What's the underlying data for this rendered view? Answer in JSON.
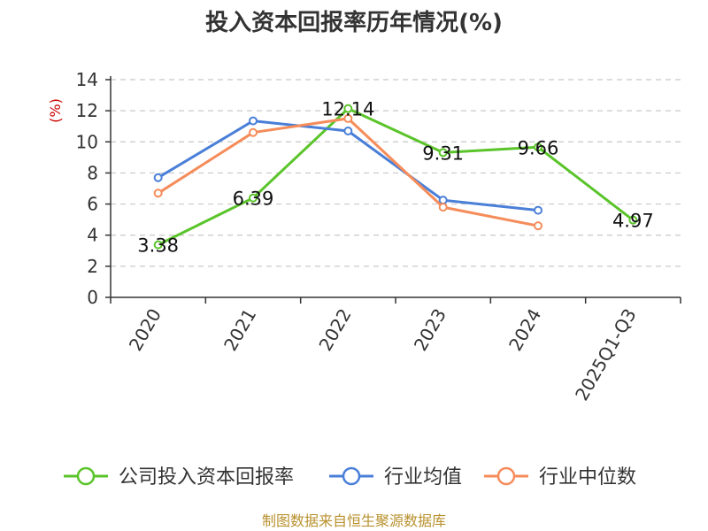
{
  "chart_data": {
    "type": "line",
    "title": "投入资本回报率历年情况(%)",
    "ylabel": "(%)",
    "categories": [
      "2020",
      "2021",
      "2022",
      "2023",
      "2024",
      "2025Q1-Q3"
    ],
    "ylim": [
      0,
      14
    ],
    "yticks": [
      0,
      2,
      4,
      6,
      8,
      10,
      12,
      14
    ],
    "grid": true,
    "legend_position": "bottom",
    "series": [
      {
        "name": "公司投入资本回报率",
        "color": "#5ac42a",
        "values": [
          3.38,
          6.39,
          12.14,
          9.31,
          9.66,
          4.97
        ],
        "labels": [
          "3.38",
          "6.39",
          "12.14",
          "9.31",
          "9.66",
          "4.97"
        ]
      },
      {
        "name": "行业均值",
        "color": "#4a7fd8",
        "values": [
          7.7,
          11.35,
          10.7,
          6.25,
          5.6,
          null
        ]
      },
      {
        "name": "行业中位数",
        "color": "#f58c5a",
        "values": [
          6.7,
          10.6,
          11.5,
          5.8,
          4.6,
          null
        ]
      }
    ]
  },
  "source": "制图数据来自恒生聚源数据库"
}
